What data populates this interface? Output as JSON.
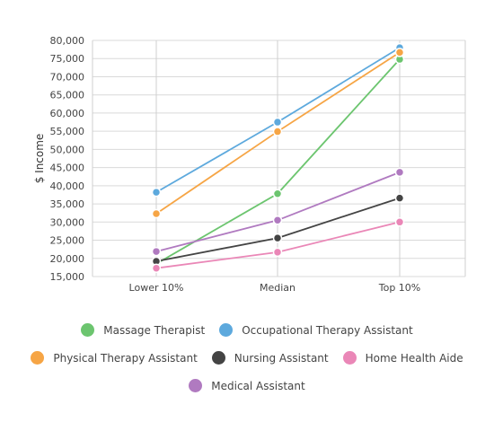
{
  "chart_data": {
    "type": "line",
    "categories": [
      "Lower 10%",
      "Median",
      "Top 10%"
    ],
    "ylabel": "$ Income",
    "xlabel": "",
    "ylim": [
      15000,
      80000
    ],
    "yticks": [
      15000,
      20000,
      25000,
      30000,
      35000,
      40000,
      45000,
      50000,
      55000,
      60000,
      65000,
      70000,
      75000,
      80000
    ],
    "ytick_labels": [
      "15,000",
      "20,000",
      "25,000",
      "30,000",
      "35,000",
      "40,000",
      "45,000",
      "50,000",
      "55,000",
      "60,000",
      "65,000",
      "70,000",
      "75,000",
      "80,000"
    ],
    "grid": true,
    "legend_position": "bottom",
    "series": [
      {
        "name": "Massage Therapist",
        "color": "#6cc56f",
        "values": [
          18500,
          37800,
          74800
        ]
      },
      {
        "name": "Occupational Therapy Assistant",
        "color": "#5da9dd",
        "values": [
          38200,
          57500,
          78000
        ]
      },
      {
        "name": "Physical Therapy Assistant",
        "color": "#f6a545",
        "values": [
          32300,
          54900,
          76700
        ]
      },
      {
        "name": "Nursing Assistant",
        "color": "#444444",
        "values": [
          19200,
          25600,
          36600
        ]
      },
      {
        "name": "Home Health Aide",
        "color": "#ea87b7",
        "values": [
          17300,
          21700,
          30000
        ]
      },
      {
        "name": "Medical Assistant",
        "color": "#b07ac0",
        "values": [
          21900,
          30500,
          43700
        ]
      }
    ],
    "legend_rows": [
      [
        "Massage Therapist",
        "Occupational Therapy Assistant"
      ],
      [
        "Physical Therapy Assistant",
        "Nursing Assistant",
        "Home Health Aide"
      ],
      [
        "Medical Assistant"
      ]
    ]
  }
}
